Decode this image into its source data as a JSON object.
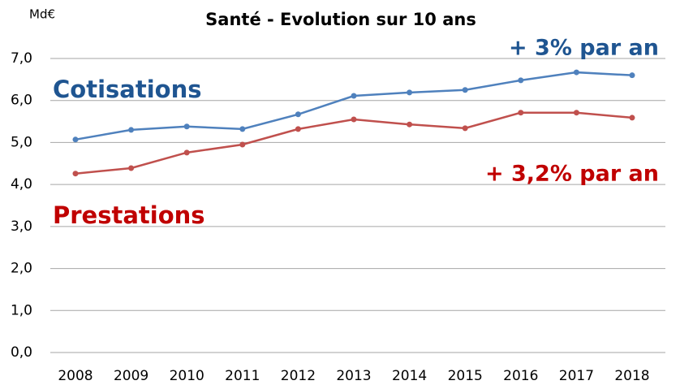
{
  "chart_data": {
    "type": "line",
    "title": "Santé - Evolution sur 10 ans",
    "y_unit": "Md€",
    "categories": [
      "2008",
      "2009",
      "2010",
      "2011",
      "2012",
      "2013",
      "2014",
      "2015",
      "2016",
      "2017",
      "2018"
    ],
    "series": [
      {
        "name": "Cotisations",
        "color": "#4f81bd",
        "values": [
          5.07,
          5.3,
          5.38,
          5.32,
          5.67,
          6.11,
          6.19,
          6.25,
          6.48,
          6.67,
          6.6
        ]
      },
      {
        "name": "Prestations",
        "color": "#c0504d",
        "values": [
          4.26,
          4.39,
          4.76,
          4.95,
          5.32,
          5.55,
          5.43,
          5.34,
          5.71,
          5.71,
          5.59
        ]
      }
    ],
    "annotations": [
      {
        "text": "Cotisations",
        "color": "#1f5591"
      },
      {
        "text": "Prestations",
        "color": "#c00000"
      },
      {
        "text": "+ 3% par an",
        "color": "#1f5591"
      },
      {
        "text": "+ 3,2% par an",
        "color": "#c00000"
      }
    ],
    "ylim": [
      0,
      7
    ],
    "yticks": [
      {
        "value": 0,
        "label": "0,0"
      },
      {
        "value": 1,
        "label": "1,0"
      },
      {
        "value": 2,
        "label": "2,0"
      },
      {
        "value": 3,
        "label": "3,0"
      },
      {
        "value": 4,
        "label": "4,0"
      },
      {
        "value": 5,
        "label": "5,0"
      },
      {
        "value": 6,
        "label": "6,0"
      },
      {
        "value": 7,
        "label": "7,0"
      }
    ],
    "grid": true
  }
}
